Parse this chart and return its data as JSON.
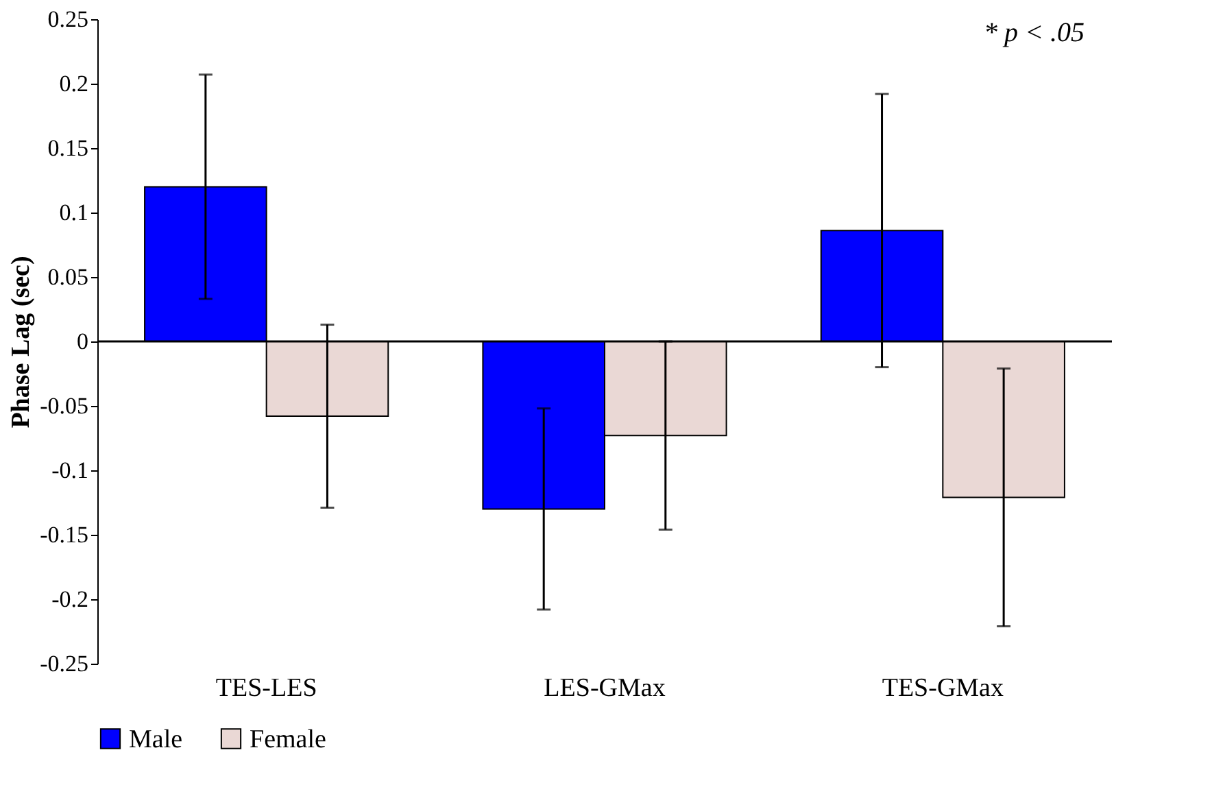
{
  "chart_data": {
    "type": "bar",
    "ylabel": "Phase Lag (sec)",
    "categories": [
      "TES-LES",
      "LES-GMax",
      "TES-GMax"
    ],
    "series": [
      {
        "name": "Male",
        "color": "#0000ff",
        "values": [
          0.12,
          -0.13,
          0.086
        ],
        "errors": [
          0.087,
          0.078,
          0.106
        ]
      },
      {
        "name": "Female",
        "color": "#ead8d5",
        "values": [
          -0.058,
          -0.073,
          -0.121
        ],
        "errors": [
          0.071,
          0.073,
          0.1
        ]
      }
    ],
    "ylim": [
      -0.25,
      0.25
    ],
    "yticks": [
      -0.25,
      -0.2,
      -0.15,
      -0.1,
      -0.05,
      0,
      0.05,
      0.1,
      0.15,
      0.2,
      0.25
    ],
    "ref_lines": [
      {
        "axis": "y",
        "value": 0,
        "color": "#000000"
      }
    ],
    "annotations": [
      "* p < .05"
    ],
    "legend": "bottom",
    "grid": false
  }
}
